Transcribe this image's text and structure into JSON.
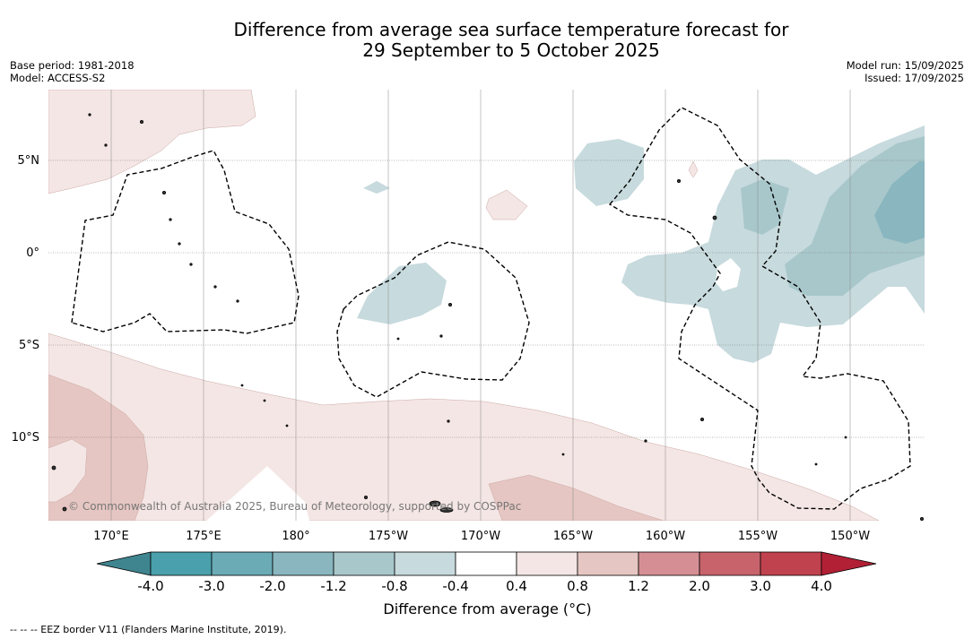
{
  "title": {
    "line1": "Difference from average sea surface temperature forecast for",
    "line2": "29 September to 5 October 2025"
  },
  "meta": {
    "base_period": "Base period: 1981-2018",
    "model": "Model: ACCESS-S2",
    "model_run": "Model run: 15/09/2025",
    "issued": "Issued: 17/09/2025"
  },
  "map": {
    "lat_labels": [
      "5°N",
      "0°",
      "5°S",
      "10°S"
    ],
    "lon_labels": [
      "170°E",
      "175°E",
      "180°",
      "175°W",
      "170°W",
      "165°W",
      "160°W",
      "155°W",
      "150°W"
    ],
    "copyright": "© Commonwealth of Australia 2025, Bureau of Meteorology, supported by COSPPac"
  },
  "legend": {
    "colors": [
      "#3f8590",
      "#4aa0ad",
      "#6aabb6",
      "#89b6bf",
      "#a8c7cb",
      "#c7dadd",
      "#ffffff",
      "#f4e6e4",
      "#e6c6c2",
      "#d58f94",
      "#c9636b",
      "#c0424e",
      "#b22036"
    ],
    "ticks": [
      "-4.0",
      "-3.0",
      "-2.0",
      "-1.2",
      "-0.8",
      "-0.4",
      "0.4",
      "0.8",
      "1.2",
      "2.0",
      "3.0",
      "4.0"
    ],
    "label": "Difference from average (°C)"
  },
  "footnote": "-- -- -- EEZ border V11 (Flanders Marine Institute, 2019)."
}
